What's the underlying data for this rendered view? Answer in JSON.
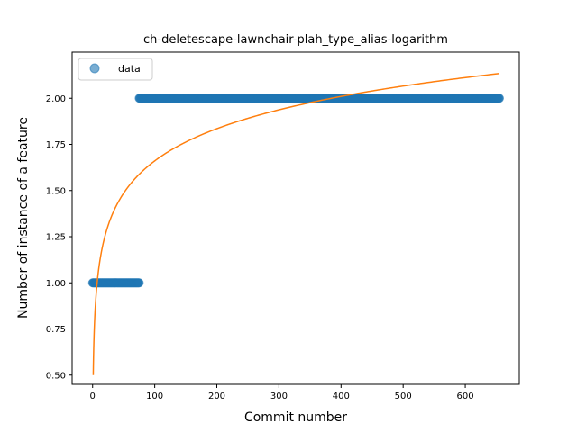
{
  "chart_data": {
    "type": "scatter",
    "title": "ch-deletescape-lawnchair-plah_type_alias-logarithm",
    "xlabel": "Commit number",
    "ylabel": "Number of instance of a feature",
    "xlim": [
      -33,
      687
    ],
    "ylim": [
      0.45,
      2.25
    ],
    "xticks": [
      0,
      100,
      200,
      300,
      400,
      500,
      600
    ],
    "yticks": [
      0.5,
      0.75,
      1.0,
      1.25,
      1.5,
      1.75,
      2.0
    ],
    "ytick_labels": [
      "0.50",
      "0.75",
      "1.00",
      "1.25",
      "1.50",
      "1.75",
      "2.00"
    ],
    "legend": {
      "position": "top-left",
      "entries": [
        "data"
      ]
    },
    "grid": false,
    "series": [
      {
        "name": "data",
        "kind": "scatter",
        "color": "#1f77b4",
        "segments": [
          {
            "x_start": 0,
            "x_end": 75,
            "y": 1
          },
          {
            "x_start": 75,
            "x_end": 655,
            "y": 2
          }
        ]
      },
      {
        "kind": "line",
        "color": "#ff7f0e",
        "fit": "logarithmic",
        "x_range": [
          1,
          655
        ],
        "a": 0.5,
        "b": 0.252
      }
    ]
  }
}
